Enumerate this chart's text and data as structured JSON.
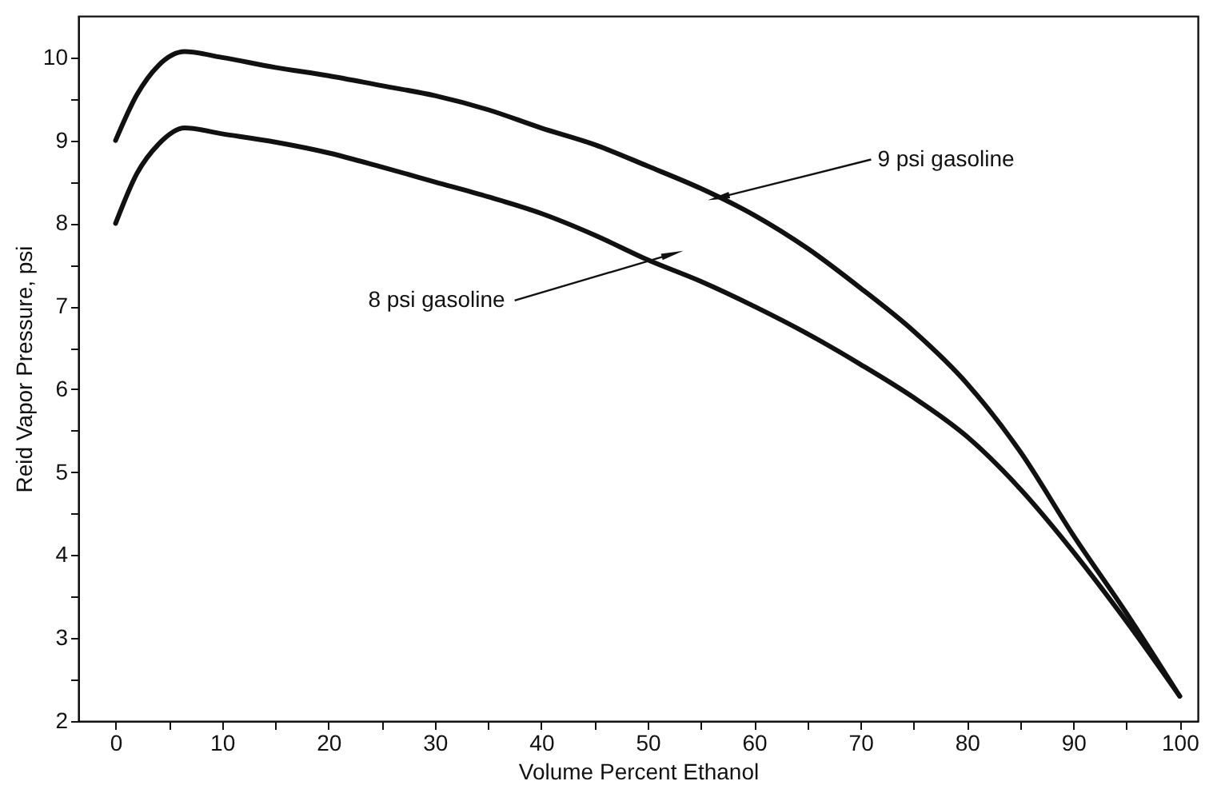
{
  "chart_data": {
    "type": "line",
    "xlabel": "Volume Percent Ethanol",
    "ylabel": "Reid Vapor Pressure, psi",
    "x": [
      0,
      2,
      4,
      6.5,
      10,
      15,
      20,
      25,
      30,
      35,
      40,
      45,
      50,
      55,
      60,
      65,
      70,
      75,
      80,
      85,
      90,
      95,
      100
    ],
    "series": [
      {
        "color": "#111111",
        "values": [
          9.0,
          9.55,
          9.9,
          10.07,
          10.0,
          9.88,
          9.78,
          9.66,
          9.54,
          9.37,
          9.15,
          8.95,
          8.69,
          8.42,
          8.1,
          7.7,
          7.22,
          6.7,
          6.07,
          5.25,
          4.24,
          3.3,
          2.3
        ]
      },
      {
        "color": "#111111",
        "values": [
          8.0,
          8.6,
          8.95,
          9.15,
          9.08,
          8.98,
          8.85,
          8.68,
          8.5,
          8.32,
          8.12,
          7.86,
          7.56,
          7.3,
          7.0,
          6.67,
          6.3,
          5.9,
          5.43,
          4.8,
          4.04,
          3.2,
          2.3
        ]
      }
    ],
    "annotations": [
      {
        "text": "9 psi gasoline",
        "x": 57,
        "y": 8.32
      },
      {
        "text": "8 psi gasoline",
        "x": 52,
        "y": 7.62
      }
    ],
    "xlim": [
      -3.5,
      101.7
    ],
    "ylim": [
      2,
      10.5
    ],
    "xticks": [
      0,
      {
        "value": 5,
        "label": null
      },
      10,
      {
        "value": 15,
        "label": null
      },
      20,
      {
        "value": 25,
        "label": null
      },
      30,
      {
        "value": 35,
        "label": null
      },
      40,
      {
        "value": 45,
        "label": null
      },
      50,
      {
        "value": 55,
        "label": null
      },
      60,
      {
        "value": 65,
        "label": null
      },
      70,
      {
        "value": 75,
        "label": null
      },
      80,
      {
        "value": 85,
        "label": null
      },
      90,
      {
        "value": 95,
        "label": null
      },
      100
    ],
    "yticks": [
      2,
      {
        "value": 2.5,
        "label": null
      },
      3,
      {
        "value": 3.5,
        "label": null
      },
      4,
      {
        "value": 4.5,
        "label": null
      },
      5,
      {
        "value": 5.5,
        "label": null
      },
      6,
      {
        "value": 6.5,
        "label": null
      },
      7,
      {
        "value": 7.5,
        "label": null
      },
      8,
      {
        "value": 8.5,
        "label": null
      },
      9,
      {
        "value": 9.5,
        "label": null
      },
      10
    ],
    "grid": false,
    "marker": "none",
    "line_style": "solid"
  }
}
